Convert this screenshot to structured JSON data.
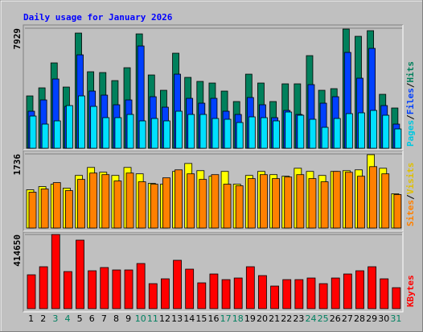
{
  "chart_data": [
    {
      "type": "bar",
      "title": "Daily usage for January 2026",
      "ylim": [
        0,
        7929
      ],
      "yticks": [
        7929
      ],
      "legend_separator": "/",
      "series": [
        {
          "name": "Hits",
          "color": "#00805c",
          "label_color": "#00805c",
          "values": [
            3458,
            3990,
            5639,
            4043,
            7608,
            5054,
            5001,
            4469,
            5320,
            7554,
            4841,
            3830,
            6278,
            4682,
            4416,
            4309,
            3777,
            3086,
            4894,
            4309,
            3086,
            4256,
            4256,
            6118,
            3830,
            3937,
            7874,
            7395,
            7767,
            3564,
            2660
          ]
        },
        {
          "name": "Files",
          "color": "#0040ff",
          "label_color": "#0040ff",
          "values": [
            2447,
            3192,
            4575,
            2766,
            6171,
            3777,
            3511,
            2873,
            3192,
            6756,
            3405,
            2713,
            4894,
            3298,
            2979,
            3298,
            2447,
            2234,
            3352,
            2873,
            2022,
            2500,
            2234,
            4203,
            2979,
            3405,
            6331,
            4628,
            6597,
            2820,
            1596
          ]
        },
        {
          "name": "Pages",
          "color": "#00e0ff",
          "label_color": "#00c8e0",
          "values": [
            2128,
            1596,
            1809,
            2820,
            3458,
            2766,
            2022,
            2022,
            2234,
            1809,
            1968,
            1809,
            2447,
            2234,
            2234,
            1968,
            1915,
            1702,
            2075,
            2022,
            1809,
            2394,
            2181,
            1915,
            1383,
            1968,
            2288,
            2341,
            2500,
            2181,
            1277
          ]
        }
      ]
    },
    {
      "type": "bar",
      "ylim": [
        0,
        1736
      ],
      "yticks": [
        1736
      ],
      "legend_separator": "/",
      "series": [
        {
          "name": "Visits",
          "color": "#ffff00",
          "label_color": "#e0c000",
          "values": [
            896,
            971,
            1027,
            934,
            1232,
            1419,
            1307,
            1232,
            1419,
            1270,
            1046,
            1027,
            1326,
            1512,
            1344,
            1214,
            1326,
            1027,
            1232,
            1326,
            1251,
            1214,
            1400,
            1326,
            1232,
            1326,
            1344,
            1363,
            1718,
            1400,
            803
          ]
        },
        {
          "name": "Sites",
          "color": "#ff8000",
          "label_color": "#ff8000",
          "values": [
            840,
            915,
            1064,
            877,
            1139,
            1288,
            1251,
            1102,
            1288,
            1083,
            1027,
            1176,
            1363,
            1270,
            1139,
            1251,
            1027,
            990,
            1158,
            1251,
            1158,
            1195,
            1251,
            1158,
            1083,
            1326,
            1307,
            1214,
            1438,
            1270,
            784
          ]
        }
      ]
    },
    {
      "type": "bar",
      "ylim": [
        0,
        414650
      ],
      "yticks": [
        414650
      ],
      "series": [
        {
          "name": "KBytes",
          "color": "#ff0000",
          "label_color": "#ff0000",
          "values": [
            189294,
            234364,
            414650,
            207322,
            383095,
            211829,
            229857,
            216336,
            216336,
            252392,
            139717,
            166759,
            270420,
            220843,
            144224,
            193801,
            162252,
            171266,
            234364,
            184787,
            126196,
            162252,
            162252,
            171266,
            139717,
            171266,
            193801,
            211829,
            234364,
            166759,
            117182
          ]
        }
      ],
      "categories": [
        "1",
        "2",
        "3",
        "4",
        "5",
        "6",
        "7",
        "8",
        "9",
        "10",
        "11",
        "12",
        "13",
        "14",
        "15",
        "16",
        "17",
        "18",
        "19",
        "20",
        "21",
        "22",
        "23",
        "24",
        "25",
        "26",
        "27",
        "28",
        "29",
        "30",
        "31"
      ],
      "category_colors": [
        "#000000",
        "#000000",
        "#008060",
        "#008060",
        "#000000",
        "#000000",
        "#000000",
        "#000000",
        "#000000",
        "#008060",
        "#008060",
        "#000000",
        "#000000",
        "#000000",
        "#000000",
        "#000000",
        "#008060",
        "#008060",
        "#000000",
        "#000000",
        "#000000",
        "#000000",
        "#000000",
        "#008060",
        "#008060",
        "#000000",
        "#000000",
        "#000000",
        "#000000",
        "#000000",
        "#008060"
      ]
    }
  ]
}
